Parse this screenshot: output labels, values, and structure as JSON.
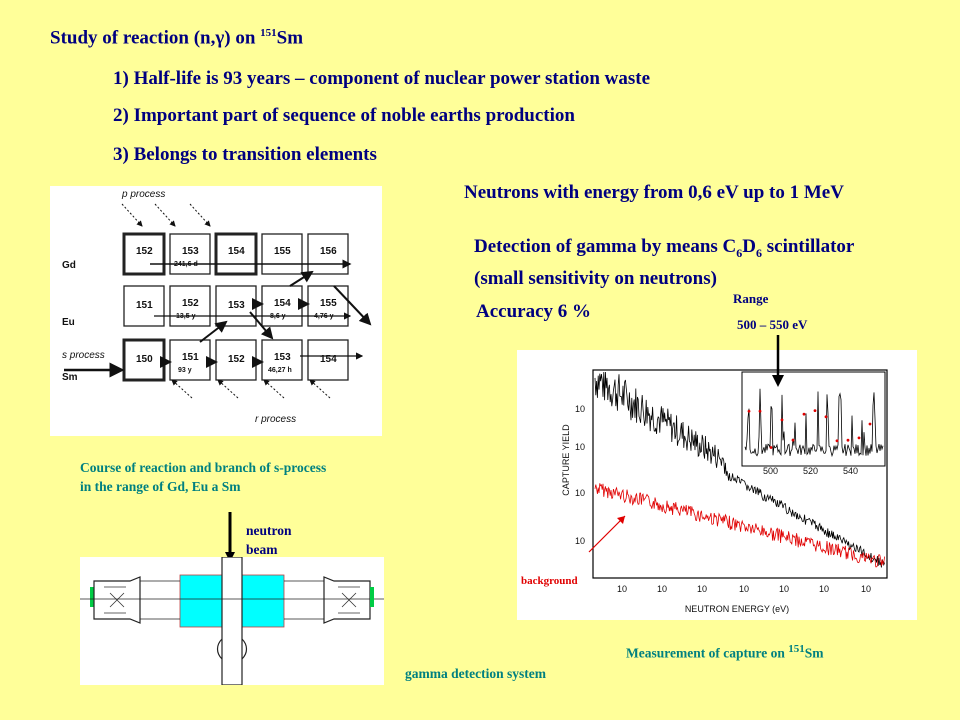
{
  "title": {
    "prefix": "Study of reaction (n,γ) on ",
    "mass": "151",
    "element": "Sm"
  },
  "points": [
    "1) Half-life is 93 years – component of nuclear power station waste",
    "2) Important part of sequence of noble earths production",
    "3) Belongs to transition elements"
  ],
  "neutrons": "Neutrons with energy from 0,6 eV up to 1 MeV",
  "detection": {
    "line1_prefix": "Detection of gamma by means C",
    "sub1": "6",
    "mid": "D",
    "sub2": "6",
    "line1_suffix": " scintillator",
    "line2": "(small sensitivity on neutrons)"
  },
  "accuracy": "Accuracy 6 %",
  "range": {
    "label": "Range",
    "value": "500 – 550 eV"
  },
  "diagram": {
    "p_process": "p process",
    "s_process": "s process",
    "r_process": "r process",
    "rows": [
      "Gd",
      "Eu",
      "Sm"
    ],
    "cells": {
      "gd": [
        "152",
        "153",
        "154",
        "155",
        "156"
      ],
      "eu": [
        "151",
        "152",
        "153",
        "154",
        "155"
      ],
      "sm": [
        "150",
        "151",
        "152",
        "153",
        "154"
      ]
    },
    "halflives": {
      "gd153": "241,6 d",
      "eu152": "13,5 y",
      "eu154": "8,6 y",
      "eu155": "4,76 y",
      "sm151": "93 y",
      "sm153": "46,27 h"
    }
  },
  "caption_left": {
    "line1": "Course of reaction and branch of s-process",
    "line2": "in the range of Gd, Eu a Sm"
  },
  "neutron_beam": {
    "line1": "neutron",
    "line2": "beam"
  },
  "gamma_system": "gamma detection system",
  "plot": {
    "ylabel": "CAPTURE YIELD",
    "xlabel": "NEUTRON ENERGY (eV)",
    "background": "background",
    "inset_ticks": [
      "500",
      "520",
      "540"
    ]
  },
  "caption_plot": {
    "prefix": "Measurement of capture on ",
    "mass": "151",
    "element": "Sm"
  },
  "colors": {
    "navy": "#000080",
    "teal": "#008080",
    "bg": "#ffff99",
    "red": "#e00000",
    "cyan": "#00ffff",
    "green": "#00cc44"
  }
}
